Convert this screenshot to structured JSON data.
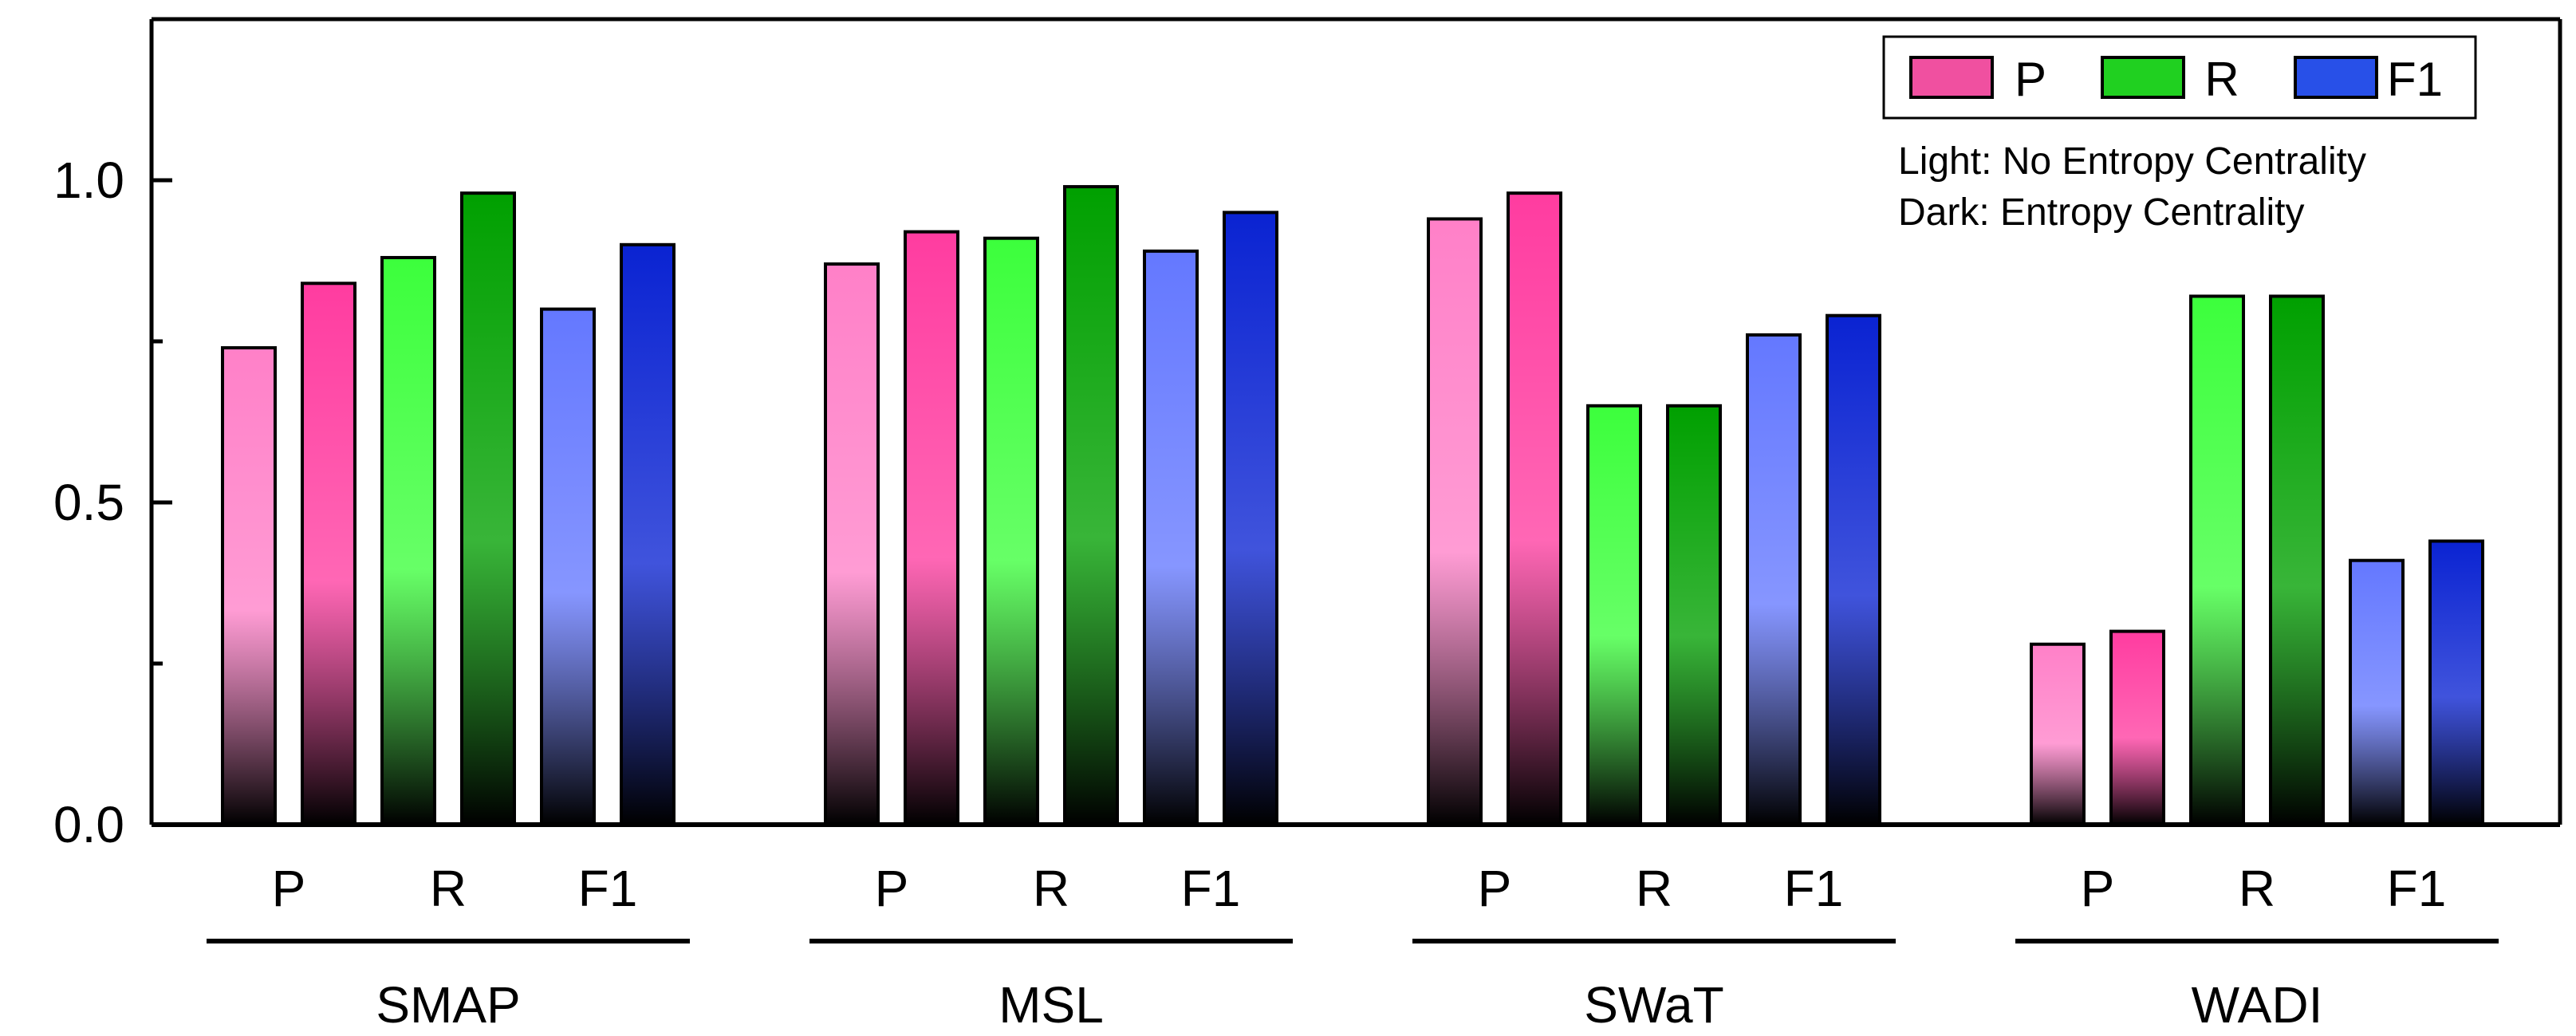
{
  "chart_data": {
    "type": "bar",
    "title": "",
    "xlabel": "",
    "ylabel": "",
    "ylim": [
      0,
      1.25
    ],
    "yticks": [
      "0.0",
      "0.5",
      "1.0"
    ],
    "grid": false,
    "legend_position": "top-right",
    "metrics": [
      "P",
      "R",
      "F1"
    ],
    "groups": [
      {
        "name": "SMAP",
        "metric_labels": [
          "P",
          "R",
          "F1"
        ],
        "values": {
          "light": {
            "P": 0.74,
            "R": 0.88,
            "F1": 0.8
          },
          "dark": {
            "P": 0.84,
            "R": 0.98,
            "F1": 0.9
          }
        }
      },
      {
        "name": "MSL",
        "metric_labels": [
          "P",
          "R",
          "F1"
        ],
        "values": {
          "light": {
            "P": 0.87,
            "R": 0.91,
            "F1": 0.89
          },
          "dark": {
            "P": 0.92,
            "R": 0.99,
            "F1": 0.95
          }
        }
      },
      {
        "name": "SWaT",
        "metric_labels": [
          "P",
          "R",
          "F1"
        ],
        "values": {
          "light": {
            "P": 0.94,
            "R": 0.65,
            "F1": 0.76
          },
          "dark": {
            "P": 0.98,
            "R": 0.65,
            "F1": 0.79
          }
        }
      },
      {
        "name": "WADI",
        "metric_labels": [
          "P",
          "R",
          "F1"
        ],
        "values": {
          "light": {
            "P": 0.28,
            "R": 0.82,
            "F1": 0.41
          },
          "dark": {
            "P": 0.3,
            "R": 0.82,
            "F1": 0.44
          }
        }
      }
    ],
    "legend": {
      "entries": [
        {
          "label": "P",
          "color": "#f050a0"
        },
        {
          "label": "R",
          "color": "#20d020"
        },
        {
          "label": "F1",
          "color": "#2850e8"
        }
      ],
      "notes": [
        "Light: No Entropy Centrality",
        "Dark: Entropy Centrality"
      ]
    },
    "colors": {
      "P": {
        "light": "#ff80c8",
        "dark": "#ff3ca0"
      },
      "R": {
        "light": "#3cff3c",
        "dark": "#00a000"
      },
      "F1": {
        "light": "#6478ff",
        "dark": "#0a23d2"
      }
    }
  }
}
